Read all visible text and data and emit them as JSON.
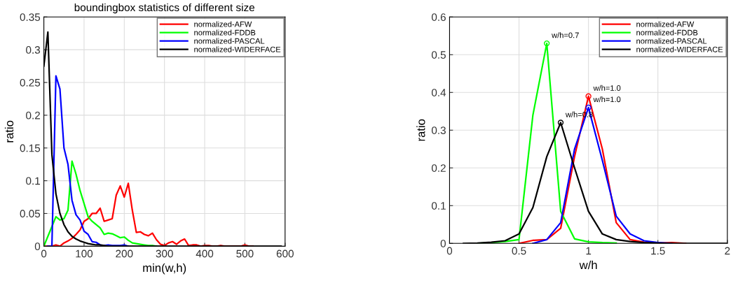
{
  "chart_data": [
    {
      "type": "line",
      "title": "boundingbox statistics of different size",
      "xlabel": "min(w,h)",
      "ylabel": "ratio",
      "x": [
        0,
        10,
        20,
        30,
        40,
        50,
        60,
        70,
        80,
        90,
        100,
        110,
        120,
        130,
        140,
        150,
        160,
        170,
        180,
        190,
        200,
        210,
        220,
        230,
        240,
        250,
        260,
        270,
        280,
        290,
        300,
        310,
        320,
        330,
        340,
        350,
        360,
        370,
        380,
        390,
        400,
        410,
        420,
        430,
        440,
        450,
        460,
        470,
        480,
        490,
        500,
        510,
        520,
        530,
        540,
        550,
        560,
        570,
        580,
        590
      ],
      "series": [
        {
          "name": "normalized-AFW",
          "color": "#ff0000",
          "values": [
            0,
            0,
            0,
            0.002,
            0,
            0.005,
            0.008,
            0.012,
            0.018,
            0.025,
            0.038,
            0.042,
            0.05,
            0.05,
            0.058,
            0.038,
            0.04,
            0.042,
            0.078,
            0.092,
            0.075,
            0.096,
            0.055,
            0.021,
            0.022,
            0.018,
            0.016,
            0.02,
            0.01,
            0.003,
            0.001,
            0.005,
            0.007,
            0.003,
            0.008,
            0.011,
            0.001,
            0.002,
            0.002,
            0,
            0.001,
            0.001,
            0,
            0,
            0.001,
            0,
            0,
            0,
            0,
            0,
            0.002,
            0,
            0,
            null,
            null,
            null,
            null,
            null,
            null,
            null
          ]
        },
        {
          "name": "normalized-FDDB",
          "color": "#00ff00",
          "values": [
            0,
            0.015,
            0.03,
            0.045,
            0.04,
            0.042,
            0.055,
            0.13,
            0.11,
            0.085,
            0.065,
            0.045,
            0.038,
            0.033,
            0.028,
            0.018,
            0.02,
            0.019,
            0.016,
            0.013,
            0.014,
            0.009,
            0.005,
            0.004,
            0.003,
            0.002,
            0.001,
            0.001,
            0,
            null,
            null,
            null,
            null,
            null,
            null,
            null,
            null,
            null,
            null,
            null,
            null,
            null,
            null,
            null,
            null,
            null,
            null,
            null,
            null,
            null,
            null,
            null,
            null,
            null,
            null,
            null,
            null,
            null,
            null,
            null
          ]
        },
        {
          "name": "normalized-PASCAL",
          "color": "#0000ff",
          "values": [
            null,
            0,
            0,
            0.26,
            0.24,
            0.15,
            0.125,
            0.07,
            0.048,
            0.04,
            0.023,
            0.018,
            0.007,
            0.006,
            0.002,
            0.001,
            0.002,
            0.001,
            0.001,
            0.001,
            0.002,
            0,
            null,
            null,
            null,
            null,
            null,
            null,
            null,
            null,
            null,
            null,
            null,
            null,
            null,
            null,
            null,
            null,
            null,
            null,
            null,
            null,
            null,
            null,
            null,
            null,
            null,
            null,
            null,
            null,
            null,
            null,
            null,
            null,
            null,
            null,
            null,
            null,
            null,
            null
          ]
        },
        {
          "name": "normalized-WIDERFACE",
          "color": "#000000",
          "values": [
            0.275,
            0.327,
            0.14,
            0.08,
            0.05,
            0.033,
            0.022,
            0.015,
            0.011,
            0.008,
            0.006,
            0.004,
            0.003,
            0.002,
            0.002,
            0.001,
            0,
            0,
            0,
            0,
            0,
            0,
            0,
            0,
            0,
            0,
            0,
            0,
            0,
            0,
            0,
            0,
            0,
            0,
            0,
            0,
            0,
            0,
            0,
            0,
            0,
            0,
            0,
            0,
            0,
            0,
            0,
            0,
            0,
            0,
            0,
            0,
            0,
            0,
            0,
            0,
            0,
            0,
            0,
            0
          ]
        }
      ],
      "xlim": [
        0,
        600
      ],
      "xticks": [
        0,
        100,
        200,
        300,
        400,
        500,
        600
      ],
      "ylim": [
        0,
        0.35
      ],
      "yticks": [
        0,
        0.05,
        0.1,
        0.15,
        0.2,
        0.25,
        0.3,
        0.35
      ],
      "grid": true,
      "legend": "top right"
    },
    {
      "type": "line",
      "xlabel": "w/h",
      "ylabel": "ratio",
      "x": [
        0.1,
        0.2,
        0.3,
        0.4,
        0.5,
        0.6,
        0.7,
        0.8,
        0.9,
        1.0,
        1.1,
        1.2,
        1.3,
        1.4,
        1.5,
        1.6,
        1.7,
        1.8,
        1.9,
        2.0
      ],
      "series": [
        {
          "name": "normalized-AFW",
          "color": "#ff0000",
          "values": [
            null,
            null,
            null,
            null,
            0,
            0.008,
            0.01,
            0.04,
            0.23,
            0.39,
            0.25,
            0.055,
            0.01,
            0.003,
            0.001,
            0.002,
            0,
            null,
            null,
            null
          ]
        },
        {
          "name": "normalized-FDDB",
          "color": "#00ff00",
          "values": [
            null,
            0,
            0.002,
            0.005,
            0.01,
            0.34,
            0.53,
            0.085,
            0.012,
            0.004,
            0.002,
            0.001,
            null,
            null,
            null,
            null,
            null,
            null,
            null,
            null
          ]
        },
        {
          "name": "normalized-PASCAL",
          "color": "#0000ff",
          "values": [
            null,
            null,
            null,
            null,
            null,
            0,
            0.01,
            0.055,
            0.25,
            0.36,
            0.22,
            0.072,
            0.025,
            0.007,
            0.002,
            0,
            null,
            null,
            null,
            null
          ]
        },
        {
          "name": "normalized-WIDERFACE",
          "color": "#000000",
          "values": [
            0,
            0.001,
            0.003,
            0.007,
            0.025,
            0.095,
            0.23,
            0.32,
            0.2,
            0.085,
            0.025,
            0.01,
            0.005,
            0.002,
            0.001,
            0,
            0,
            0,
            0,
            0
          ]
        }
      ],
      "annotations": [
        {
          "text": "w/h=0.7",
          "x": 0.7,
          "y": 0.53
        },
        {
          "text": "w/h=1.0",
          "x": 1.0,
          "y": 0.39
        },
        {
          "text": "w/h=1.0",
          "x": 1.0,
          "y": 0.36
        },
        {
          "text": "w/h=0.8",
          "x": 0.8,
          "y": 0.32
        }
      ],
      "xlim": [
        0,
        2
      ],
      "xticks": [
        0,
        0.5,
        1,
        1.5,
        2
      ],
      "ylim": [
        0,
        0.6
      ],
      "yticks": [
        0,
        0.1,
        0.2,
        0.3,
        0.4,
        0.5,
        0.6
      ],
      "grid": true,
      "legend": "top right"
    }
  ]
}
